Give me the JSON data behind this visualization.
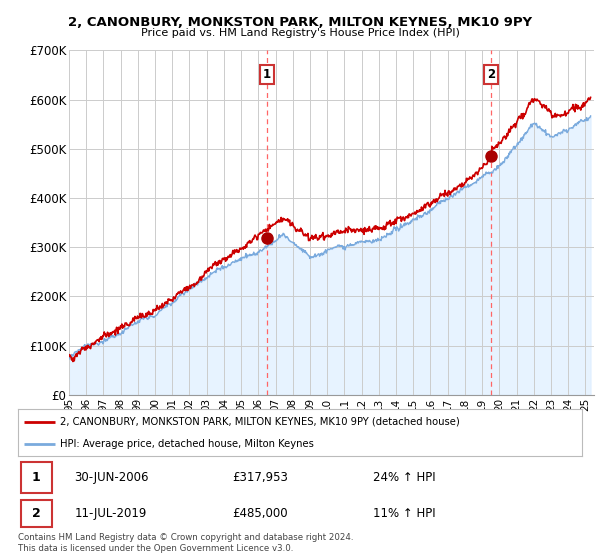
{
  "title": "2, CANONBURY, MONKSTON PARK, MILTON KEYNES, MK10 9PY",
  "subtitle": "Price paid vs. HM Land Registry's House Price Index (HPI)",
  "background_color": "#ffffff",
  "grid_color": "#cccccc",
  "plot_bg_color": "#ddeeff",
  "sale1_price": 317953,
  "sale1_date_str": "30-JUN-2006",
  "sale1_hpi_str": "24% ↑ HPI",
  "sale2_price": 485000,
  "sale2_date_str": "11-JUL-2019",
  "sale2_hpi_str": "11% ↑ HPI",
  "legend_house": "2, CANONBURY, MONKSTON PARK, MILTON KEYNES, MK10 9PY (detached house)",
  "legend_hpi": "HPI: Average price, detached house, Milton Keynes",
  "footer": "Contains HM Land Registry data © Crown copyright and database right 2024.\nThis data is licensed under the Open Government Licence v3.0.",
  "house_line_color": "#cc0000",
  "hpi_line_color": "#7aaadd",
  "hpi_fill_color": "#ddeeff",
  "sale_marker_color": "#aa0000",
  "vline_color": "#ff6666",
  "ylim": [
    0,
    700000
  ],
  "yticks": [
    0,
    100000,
    200000,
    300000,
    400000,
    500000,
    600000,
    700000
  ],
  "ytick_labels": [
    "£0",
    "£100K",
    "£200K",
    "£300K",
    "£400K",
    "£500K",
    "£600K",
    "£700K"
  ],
  "xlim_start": 1995.0,
  "xlim_end": 2025.5,
  "t_sale1": 2006.5,
  "t_sale2": 2019.54
}
